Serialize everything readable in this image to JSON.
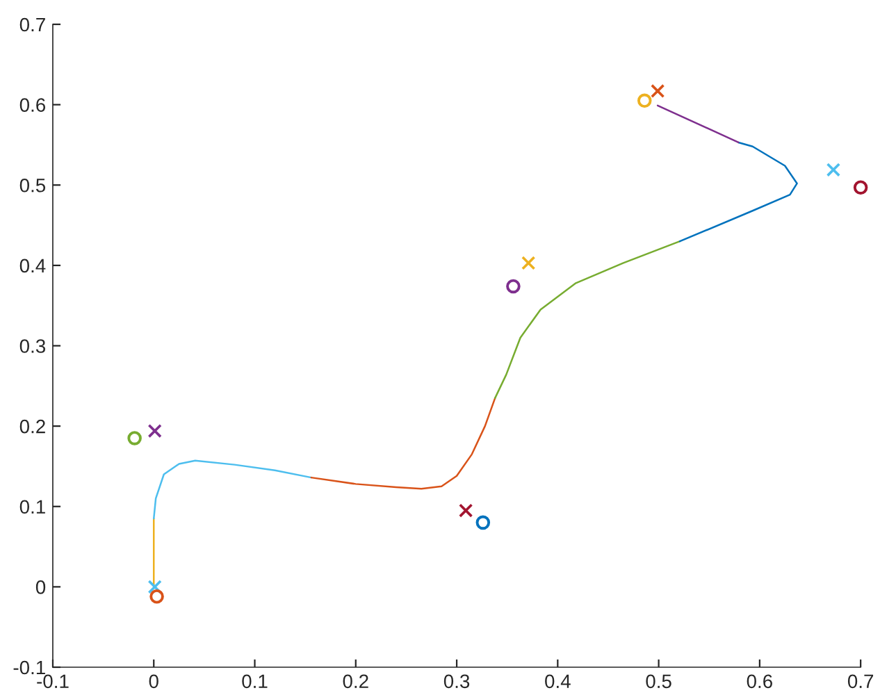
{
  "chart_data": {
    "type": "line",
    "xlim": [
      -0.1,
      0.7
    ],
    "ylim": [
      -0.1,
      0.7
    ],
    "xticks": [
      -0.1,
      0,
      0.1,
      0.2,
      0.3,
      0.4,
      0.5,
      0.6,
      0.7
    ],
    "yticks": [
      -0.1,
      0,
      0.1,
      0.2,
      0.3,
      0.4,
      0.5,
      0.6,
      0.7
    ],
    "grid": false,
    "legend": false,
    "series": [
      {
        "color": "#edb120",
        "x": [
          0,
          0
        ],
        "values": [
          0,
          0.085
        ]
      },
      {
        "color": "#4dbeee",
        "x": [
          0,
          0.002,
          0.01,
          0.025,
          0.041,
          0.08,
          0.12,
          0.156
        ],
        "values": [
          0.085,
          0.11,
          0.14,
          0.153,
          0.157,
          0.152,
          0.145,
          0.136
        ]
      },
      {
        "color": "#d95319",
        "x": [
          0.156,
          0.2,
          0.24,
          0.265,
          0.285,
          0.3,
          0.315,
          0.328,
          0.338
        ],
        "values": [
          0.136,
          0.128,
          0.124,
          0.122,
          0.125,
          0.138,
          0.165,
          0.2,
          0.235
        ]
      },
      {
        "color": "#77ac30",
        "x": [
          0.338,
          0.349,
          0.363,
          0.383,
          0.418,
          0.465,
          0.521
        ],
        "values": [
          0.235,
          0.264,
          0.31,
          0.345,
          0.378,
          0.403,
          0.43
        ]
      },
      {
        "color": "#0072bd",
        "x": [
          0.521,
          0.593,
          0.63,
          0.637,
          0.625,
          0.593,
          0.579
        ],
        "values": [
          0.43,
          0.468,
          0.488,
          0.502,
          0.524,
          0.548,
          0.553
        ]
      },
      {
        "color": "#7e2f8e",
        "x": [
          0.579,
          0.499
        ],
        "values": [
          0.553,
          0.599
        ]
      },
      {
        "type": "scatter",
        "marker": "cross",
        "x": [
          0.001,
          0.001,
          0.309,
          0.371,
          0.499,
          0.673
        ],
        "values": [
          0.0,
          0.194,
          0.095,
          0.403,
          0.617,
          0.519
        ],
        "colors": [
          "#4dbeee",
          "#7e2f8e",
          "#a2142f",
          "#edb120",
          "#d95319",
          "#4dbeee"
        ]
      },
      {
        "type": "scatter",
        "marker": "circle",
        "x": [
          0.003,
          -0.019,
          0.326,
          0.356,
          0.486,
          0.7
        ],
        "values": [
          -0.012,
          0.185,
          0.08,
          0.374,
          0.605,
          0.497
        ],
        "colors": [
          "#d95319",
          "#77ac30",
          "#0072bd",
          "#7e2f8e",
          "#edb120",
          "#a2142f"
        ]
      }
    ]
  }
}
